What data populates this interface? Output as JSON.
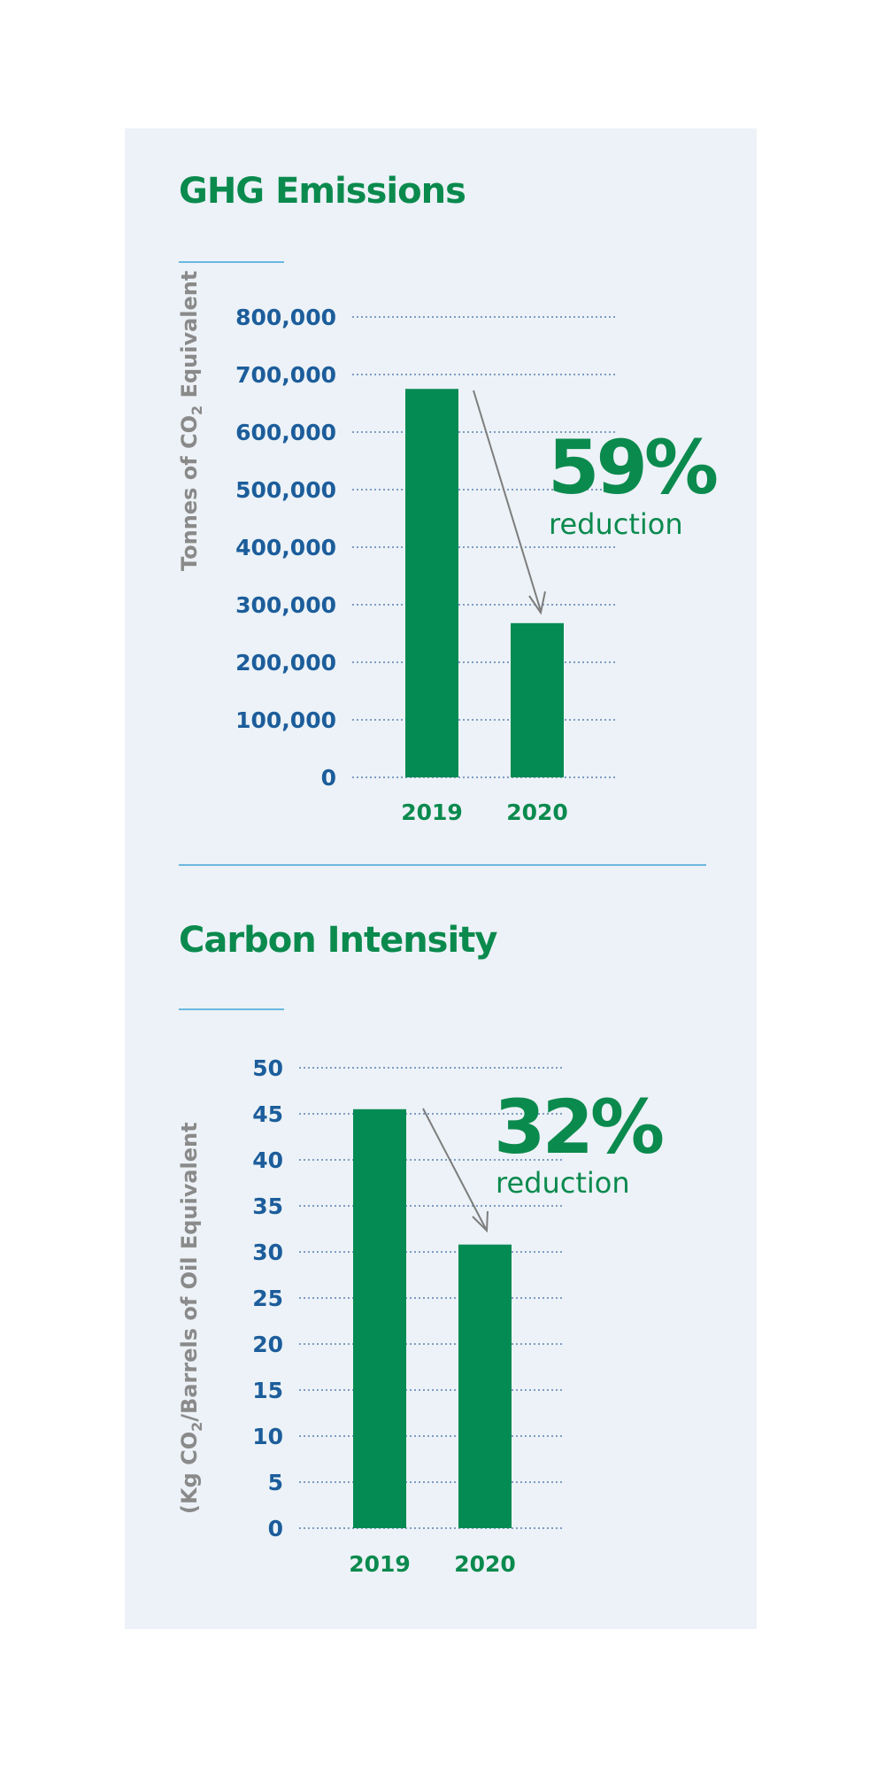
{
  "chart_data": [
    {
      "type": "bar",
      "title": "GHG Emissions",
      "ylabel": "Tonnes of CO2 Equivalent",
      "ylabel_base": "Tonnes of CO",
      "ylabel_sub": "2",
      "ylabel_rest": " Equivalent",
      "categories": [
        "2019",
        "2020"
      ],
      "values": [
        675000,
        268000
      ],
      "ylim": [
        0,
        800000
      ],
      "yticks": [
        0,
        100000,
        200000,
        300000,
        400000,
        500000,
        600000,
        700000,
        800000
      ],
      "ytick_labels": [
        "0",
        "100,000",
        "200,000",
        "300,000",
        "400,000",
        "500,000",
        "600,000",
        "700,000",
        "800,000"
      ],
      "grid": true,
      "annotation": {
        "value": "59%",
        "text": "reduction"
      },
      "colors": {
        "bar": "#048b53",
        "tick": "#1c5d9b",
        "category": "#0b8a4e",
        "axis_title": "#8a8a8a"
      }
    },
    {
      "type": "bar",
      "title": "Carbon Intensity",
      "ylabel": "(Kg CO2/Barrels of Oil Equivalent",
      "ylabel_base": "(Kg CO",
      "ylabel_sub": "2",
      "ylabel_rest": "/Barrels of Oil Equivalent",
      "categories": [
        "2019",
        "2020"
      ],
      "values": [
        45.5,
        30.8
      ],
      "ylim": [
        0,
        50
      ],
      "yticks": [
        0,
        5,
        10,
        15,
        20,
        25,
        30,
        35,
        40,
        45,
        50
      ],
      "ytick_labels": [
        "0",
        "5",
        "10",
        "15",
        "20",
        "25",
        "30",
        "35",
        "40",
        "45",
        "50"
      ],
      "grid": true,
      "annotation": {
        "value": "32%",
        "text": "reduction"
      },
      "colors": {
        "bar": "#048b53",
        "tick": "#1c5d9b",
        "category": "#0b8a4e",
        "axis_title": "#8a8a8a"
      }
    }
  ]
}
